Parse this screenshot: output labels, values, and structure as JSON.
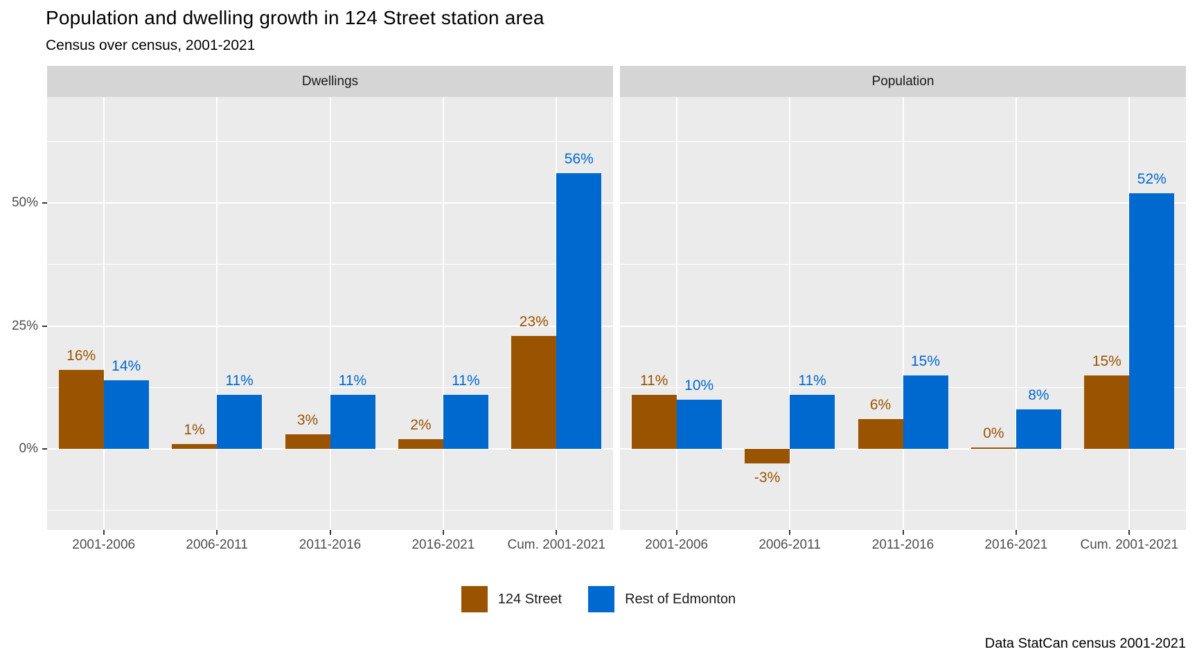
{
  "title": "Population and dwelling growth in 124 Street station area",
  "subtitle": "Census over census, 2001-2021",
  "caption": "Data StatCan census 2001-2021",
  "legend": {
    "position": "bottom",
    "items": [
      {
        "label": "124 Street",
        "color": "#9a5300"
      },
      {
        "label": "Rest of Edmonton",
        "color": "#0069cf"
      }
    ]
  },
  "colors": {
    "series_124_street": "#9a5300",
    "series_rest_of_edmonton": "#0069cf",
    "panel_background": "#ebebeb",
    "strip_background": "#d5d5d5",
    "gridline": "#ffffff",
    "axis_text": "#4d4d4d",
    "tick_mark": "#333333"
  },
  "chart_data": {
    "type": "bar",
    "grouping": "dodged",
    "grid": "on",
    "legend_position": "bottom",
    "categories": [
      "2001-2006",
      "2006-2011",
      "2011-2016",
      "2016-2021",
      "Cum. 2001-2021"
    ],
    "y_axis": {
      "tick_labels": [
        "0%",
        "25%",
        "50%"
      ],
      "tick_values": [
        0,
        25,
        50
      ],
      "minor_gridline_values": [
        -12.5,
        12.5,
        37.5,
        62.5
      ],
      "range": [
        -16.5,
        71.5
      ],
      "unit": "percent"
    },
    "facets": [
      {
        "name": "Dwellings",
        "series": [
          {
            "name": "124 Street",
            "values": [
              16,
              1,
              3,
              2,
              23
            ],
            "labels": [
              "16%",
              "1%",
              "3%",
              "2%",
              "23%"
            ]
          },
          {
            "name": "Rest of Edmonton",
            "values": [
              14,
              11,
              11,
              11,
              56
            ],
            "labels": [
              "14%",
              "11%",
              "11%",
              "11%",
              "56%"
            ]
          }
        ]
      },
      {
        "name": "Population",
        "series": [
          {
            "name": "124 Street",
            "values": [
              11,
              -3,
              6,
              0,
              15
            ],
            "labels": [
              "11%",
              "-3%",
              "6%",
              "0%",
              "15%"
            ]
          },
          {
            "name": "Rest of Edmonton",
            "values": [
              10,
              11,
              15,
              8,
              52
            ],
            "labels": [
              "10%",
              "11%",
              "15%",
              "8%",
              "52%"
            ]
          }
        ]
      }
    ]
  }
}
